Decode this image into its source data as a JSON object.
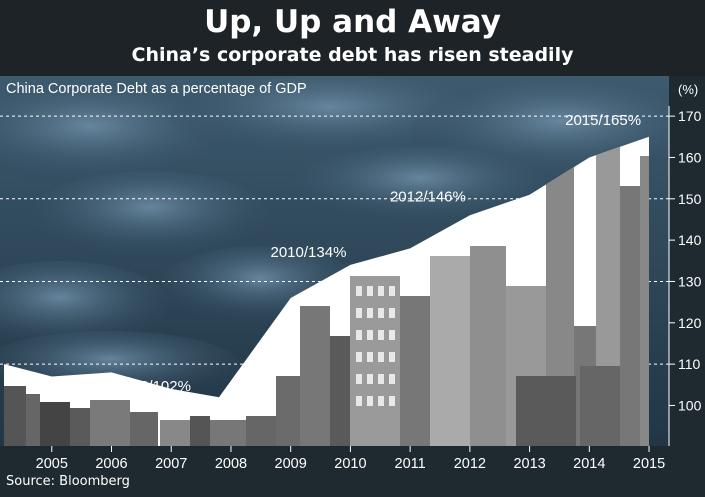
{
  "header": {
    "title": "Up, Up and Away",
    "subtitle": "China’s corporate debt has risen steadily"
  },
  "source": "Source: Bloomberg",
  "chart_data": {
    "type": "area",
    "title": "China Corporate Debt as a percentage of GDP",
    "ylabel": "(%)",
    "xlabel": "",
    "x": [
      2004.2,
      2005,
      2006,
      2007,
      2007.8,
      2009,
      2010,
      2011,
      2012,
      2013,
      2014,
      2015
    ],
    "values": [
      110,
      107,
      108,
      104,
      102,
      126,
      134,
      138,
      146,
      151,
      160,
      165
    ],
    "xticks": [
      2005,
      2006,
      2007,
      2008,
      2009,
      2010,
      2011,
      2012,
      2013,
      2014,
      2015
    ],
    "yticks": [
      100,
      110,
      120,
      130,
      140,
      150,
      160,
      170
    ],
    "ylim": [
      96,
      171
    ],
    "xlim": [
      2004.2,
      2015.15
    ],
    "gridlines": [
      110,
      130,
      150,
      170
    ],
    "annotations": [
      {
        "label": "2008/102%",
        "x": 2008,
        "y": 102
      },
      {
        "label": "2010/134%",
        "x": 2010,
        "y": 134
      },
      {
        "label": "2012/146%",
        "x": 2012,
        "y": 146
      },
      {
        "label": "2015/165%",
        "x": 2015,
        "y": 165
      }
    ],
    "colors": {
      "area": "#ffffff",
      "axis_band": "#1f2a30",
      "grid": "#ffffff"
    }
  }
}
